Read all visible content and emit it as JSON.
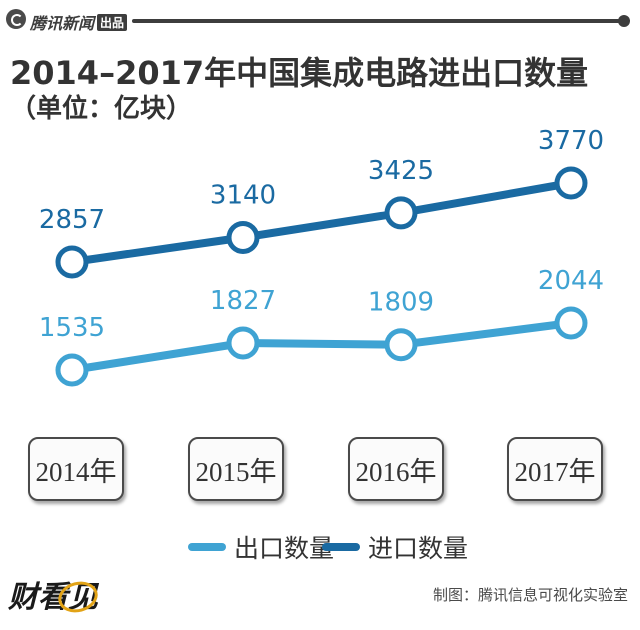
{
  "header": {
    "source_label": "腾讯新闻",
    "source_chip": "出品"
  },
  "chart_data": {
    "type": "line",
    "title": "2014–2017年中国集成电路进出口数量",
    "subtitle": "（单位：亿块）",
    "categories": [
      "2014年",
      "2015年",
      "2016年",
      "2017年"
    ],
    "series": [
      {
        "name": "进口数量",
        "values": [
          2857,
          3140,
          3425,
          3770
        ],
        "color": "#1a6aa2"
      },
      {
        "name": "出口数量",
        "values": [
          1535,
          1827,
          1809,
          2044
        ],
        "color": "#3fa3d3"
      }
    ],
    "legend_position": "bottom"
  },
  "footer": {
    "brand": "财看见",
    "credit": "制图：腾讯信息可视化实验室"
  }
}
